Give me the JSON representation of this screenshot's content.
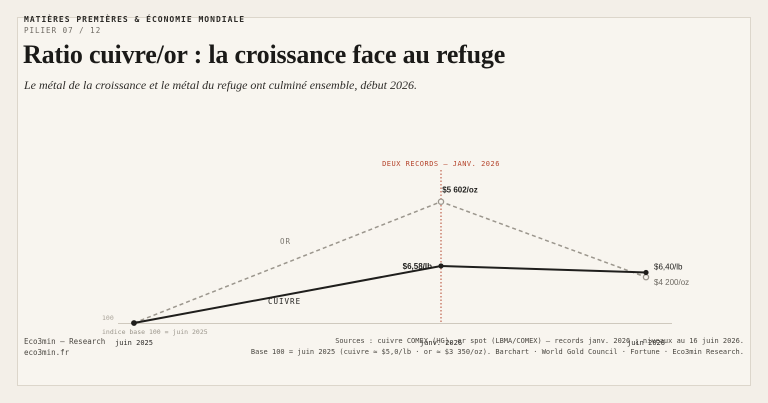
{
  "header": {
    "kicker": "MATIÈRES PREMIÈRES & ÉCONOMIE MONDIALE",
    "pillar": "PILIER 07 / 12",
    "title": "Ratio cuivre/or : la croissance face au refuge",
    "subtitle": "Le métal de la croissance et le métal du refuge ont culminé ensemble, début 2026."
  },
  "chart_data": {
    "type": "line",
    "categories": [
      "juin 2025",
      "janv. 2026",
      "juin 2026"
    ],
    "baseline_label": "100",
    "baseline_note": "indice base 100 = juin 2025",
    "ylim": [
      100,
      182
    ],
    "series": [
      {
        "name": "OR",
        "values": [
          100,
          167.2,
          125.4
        ],
        "point_labels": [
          "",
          "$5 602/oz",
          "$4 200/oz"
        ],
        "color": "#9b968d",
        "dashed": true
      },
      {
        "name": "CUIVRE",
        "values": [
          100,
          131.6,
          128
        ],
        "point_labels": [
          "",
          "$6,58/lb",
          "$6,40/lb"
        ],
        "color": "#1f1e1c",
        "dashed": false
      }
    ],
    "annotation": {
      "text": "DEUX RECORDS — JANV. 2026",
      "at": "janv. 2026",
      "color": "#b5452d"
    }
  },
  "footer": {
    "brand": "Eco3min — Research",
    "site": "eco3min.fr",
    "sources_line1": "Sources : cuivre COMEX (HG), or spot (LBMA/COMEX) — records janv. 2026 ; niveaux au 16 juin 2026.",
    "sources_line2": "Base 100 = juin 2025 (cuivre ≈ $5,0/lb · or ≈ $3 350/oz). Barchart · World Gold Council · Fortune · Eco3min Research."
  }
}
